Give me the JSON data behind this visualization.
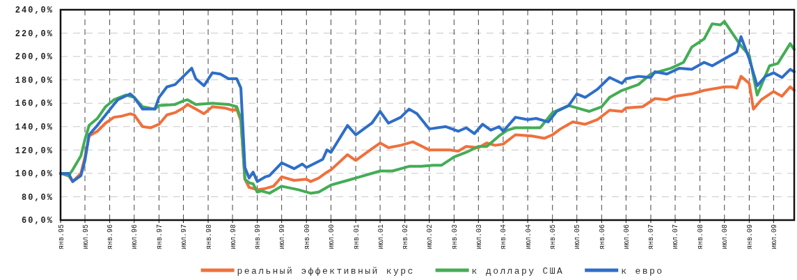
{
  "chart_data": {
    "type": "line",
    "xlim": [
      "1995-01",
      "2009-12"
    ],
    "xticks": [
      {
        "value": "1995-01",
        "label": "янв.95"
      },
      {
        "value": "1995-07",
        "label": "июл.95"
      },
      {
        "value": "1996-01",
        "label": "янв.96"
      },
      {
        "value": "1996-07",
        "label": "июл.96"
      },
      {
        "value": "1997-01",
        "label": "янв.97"
      },
      {
        "value": "1997-07",
        "label": "июл.97"
      },
      {
        "value": "1998-01",
        "label": "янв.98"
      },
      {
        "value": "1998-07",
        "label": "июл.98"
      },
      {
        "value": "1999-01",
        "label": "янв.99"
      },
      {
        "value": "1999-07",
        "label": "июл.99"
      },
      {
        "value": "2000-01",
        "label": "янв.00"
      },
      {
        "value": "2000-07",
        "label": "июл.00"
      },
      {
        "value": "2001-01",
        "label": "янв.01"
      },
      {
        "value": "2001-07",
        "label": "июл.01"
      },
      {
        "value": "2002-01",
        "label": "янв.02"
      },
      {
        "value": "2002-07",
        "label": "июл.02"
      },
      {
        "value": "2003-01",
        "label": "янв.03"
      },
      {
        "value": "2003-07",
        "label": "июл.03"
      },
      {
        "value": "2004-01",
        "label": "янв.04"
      },
      {
        "value": "2004-07",
        "label": "июл.04"
      },
      {
        "value": "2005-01",
        "label": "янв.05"
      },
      {
        "value": "2005-07",
        "label": "июл.05"
      },
      {
        "value": "2006-01",
        "label": "янв.06"
      },
      {
        "value": "2006-07",
        "label": "июл.06"
      },
      {
        "value": "2007-01",
        "label": "янв.07"
      },
      {
        "value": "2007-07",
        "label": "июл.07"
      },
      {
        "value": "2008-01",
        "label": "янв.08"
      },
      {
        "value": "2008-07",
        "label": "июл.08"
      },
      {
        "value": "2009-01",
        "label": "янв.09"
      },
      {
        "value": "2009-07",
        "label": "июл.09"
      }
    ],
    "ylim": [
      60,
      240
    ],
    "yticks": [
      {
        "value": 60,
        "label": "60,0%"
      },
      {
        "value": 80,
        "label": "80,0%"
      },
      {
        "value": 100,
        "label": "100,0%"
      },
      {
        "value": 120,
        "label": "120,0%"
      },
      {
        "value": 140,
        "label": "140,0%"
      },
      {
        "value": 160,
        "label": "160,0%"
      },
      {
        "value": 180,
        "label": "180,0%"
      },
      {
        "value": 200,
        "label": "200,0%"
      },
      {
        "value": 220,
        "label": "220,0%"
      },
      {
        "value": 240,
        "label": "240,0%"
      }
    ],
    "grid": true,
    "legend": "bottom",
    "series": [
      {
        "name": "реальный эффективный курс",
        "color": "#f0703c",
        "x": [
          "1995-01",
          "1995-03",
          "1995-04",
          "1995-06",
          "1995-07",
          "1995-08",
          "1995-10",
          "1995-12",
          "1996-02",
          "1996-04",
          "1996-06",
          "1996-07",
          "1996-09",
          "1996-11",
          "1997-01",
          "1997-03",
          "1997-05",
          "1997-07",
          "1997-08",
          "1997-10",
          "1997-12",
          "1998-02",
          "1998-05",
          "1998-07",
          "1998-08",
          "1998-09",
          "1998-10",
          "1998-11",
          "1999-01",
          "1999-03",
          "1999-05",
          "1999-07",
          "1999-10",
          "2000-01",
          "2000-02",
          "2000-04",
          "2000-06",
          "2000-07",
          "2000-11",
          "2001-01",
          "2001-05",
          "2001-07",
          "2001-09",
          "2001-12",
          "2002-03",
          "2002-07",
          "2002-12",
          "2003-02",
          "2003-04",
          "2003-07",
          "2003-09",
          "2003-11",
          "2004-01",
          "2004-04",
          "2004-08",
          "2004-11",
          "2005-01",
          "2005-03",
          "2005-06",
          "2005-09",
          "2005-12",
          "2006-03",
          "2006-06",
          "2006-07",
          "2006-11",
          "2007-02",
          "2007-05",
          "2007-07",
          "2007-11",
          "2008-02",
          "2008-07",
          "2008-09",
          "2008-10",
          "2008-11",
          "2009-01",
          "2009-02",
          "2009-04",
          "2009-07",
          "2009-09",
          "2009-11",
          "2009-12"
        ],
        "values": [
          100,
          98,
          93,
          100,
          114,
          132,
          136,
          143,
          148,
          149,
          151,
          150,
          140,
          139,
          142,
          150,
          152,
          156,
          159,
          155,
          151,
          157,
          156,
          154,
          155,
          145,
          95,
          88,
          86,
          87,
          89,
          97,
          94,
          95,
          93,
          96,
          101,
          103,
          116,
          111,
          121,
          126,
          122,
          124,
          127,
          120,
          120,
          119,
          123,
          122,
          126,
          124,
          125,
          133,
          132,
          130,
          133,
          138,
          144,
          142,
          146,
          154,
          153,
          156,
          157,
          164,
          163,
          166,
          168,
          171,
          174,
          174,
          173,
          183,
          177,
          155,
          163,
          170,
          166,
          174,
          171
        ]
      },
      {
        "name": "к доллару США",
        "color": "#44ad55",
        "x": [
          "1995-01",
          "1995-03",
          "1995-04",
          "1995-06",
          "1995-07",
          "1995-08",
          "1995-10",
          "1995-12",
          "1996-02",
          "1996-05",
          "1996-07",
          "1996-09",
          "1996-12",
          "1997-01",
          "1997-05",
          "1997-07",
          "1997-08",
          "1997-10",
          "1998-02",
          "1998-06",
          "1998-08",
          "1998-09",
          "1998-10",
          "1998-11",
          "1998-12",
          "1999-01",
          "1999-02",
          "1999-04",
          "1999-07",
          "1999-11",
          "2000-02",
          "2000-04",
          "2000-07",
          "2000-11",
          "2001-02",
          "2001-07",
          "2001-10",
          "2002-02",
          "2002-05",
          "2002-08",
          "2002-10",
          "2003-01",
          "2003-04",
          "2003-07",
          "2003-09",
          "2003-12",
          "2004-02",
          "2004-04",
          "2004-08",
          "2004-10",
          "2005-01",
          "2005-05",
          "2005-07",
          "2005-10",
          "2006-01",
          "2006-03",
          "2006-06",
          "2006-10",
          "2007-01",
          "2007-06",
          "2007-09",
          "2007-11",
          "2008-02",
          "2008-04",
          "2008-06",
          "2008-07",
          "2008-11",
          "2009-01",
          "2009-03",
          "2009-06",
          "2009-08",
          "2009-11",
          "2009-12"
        ],
        "values": [
          100,
          98,
          103,
          115,
          129,
          141,
          147,
          157,
          163,
          167,
          165,
          157,
          155,
          158,
          159,
          162,
          163,
          159,
          160,
          159,
          157,
          147,
          95,
          92,
          91,
          84,
          85,
          83,
          89,
          86,
          83,
          84,
          90,
          94,
          97,
          102,
          102,
          106,
          106,
          107,
          107,
          114,
          118,
          123,
          123,
          132,
          137,
          139,
          139,
          139,
          152,
          158,
          156,
          153,
          157,
          165,
          171,
          176,
          185,
          190,
          195,
          208,
          215,
          228,
          227,
          230,
          209,
          201,
          167,
          192,
          194,
          211,
          206
        ]
      },
      {
        "name": "к евро",
        "color": "#2e6ec8",
        "x": [
          "1995-01",
          "1995-03",
          "1995-04",
          "1995-06",
          "1995-07",
          "1995-08",
          "1995-10",
          "1996-02",
          "1996-03",
          "1996-06",
          "1996-07",
          "1996-09",
          "1996-12",
          "1997-01",
          "1997-03",
          "1997-05",
          "1997-07",
          "1997-09",
          "1997-10",
          "1997-12",
          "1998-02",
          "1998-04",
          "1998-06",
          "1998-08",
          "1998-09",
          "1998-10",
          "1998-11",
          "1998-12",
          "1999-01",
          "1999-03",
          "1999-04",
          "1999-07",
          "1999-10",
          "1999-12",
          "2000-01",
          "2000-05",
          "2000-06",
          "2000-07",
          "2000-11",
          "2001-01",
          "2001-05",
          "2001-07",
          "2001-09",
          "2001-12",
          "2002-02",
          "2002-04",
          "2002-07",
          "2002-11",
          "2003-02",
          "2003-04",
          "2003-06",
          "2003-08",
          "2003-10",
          "2003-12",
          "2004-01",
          "2004-04",
          "2004-07",
          "2004-09",
          "2004-11",
          "2004-12",
          "2005-02",
          "2005-05",
          "2005-07",
          "2005-09",
          "2005-12",
          "2006-03",
          "2006-06",
          "2006-07",
          "2006-10",
          "2007-01",
          "2007-02",
          "2007-05",
          "2007-08",
          "2007-11",
          "2008-02",
          "2008-04",
          "2008-07",
          "2008-10",
          "2008-11",
          "2009-01",
          "2009-03",
          "2009-05",
          "2009-07",
          "2009-09",
          "2009-11",
          "2009-12"
        ],
        "values": [
          100,
          100,
          93,
          98,
          111,
          133,
          141,
          159,
          163,
          168,
          165,
          155,
          155,
          165,
          174,
          176,
          183,
          190,
          181,
          175,
          186,
          185,
          181,
          181,
          173,
          105,
          96,
          101,
          93,
          97,
          98,
          109,
          104,
          108,
          105,
          112,
          120,
          118,
          141,
          133,
          143,
          153,
          143,
          148,
          155,
          151,
          138,
          140,
          136,
          139,
          134,
          142,
          137,
          140,
          136,
          148,
          146,
          147,
          145,
          144,
          153,
          158,
          168,
          165,
          172,
          182,
          177,
          181,
          183,
          182,
          187,
          185,
          190,
          189,
          195,
          192,
          198,
          204,
          217,
          198,
          175,
          183,
          186,
          182,
          189,
          187
        ]
      }
    ]
  }
}
